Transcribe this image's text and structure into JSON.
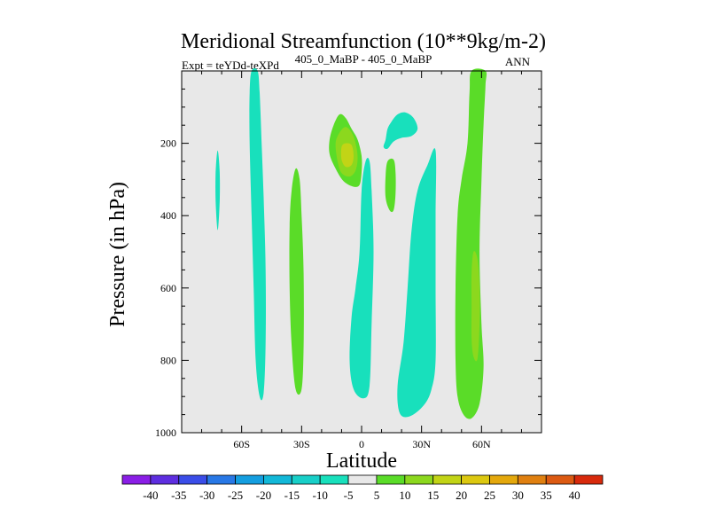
{
  "chart_data": {
    "type": "heatmap",
    "title": "Meridional Streamfunction (10**9kg/m-2)",
    "subtitle_left": "Expt = teYDd-teXPd",
    "subtitle_center": "405_0_MaBP - 405_0_MaBP",
    "subtitle_right": "ANN",
    "xlabel": "Latitude",
    "ylabel": "Pressure (in hPa)",
    "xlim": [
      -90,
      90
    ],
    "ylim": [
      1000,
      0
    ],
    "x_ticks": [
      {
        "value": -60,
        "label": "60S"
      },
      {
        "value": -30,
        "label": "30S"
      },
      {
        "value": 0,
        "label": "0"
      },
      {
        "value": 30,
        "label": "30N"
      },
      {
        "value": 60,
        "label": "60N"
      }
    ],
    "y_ticks": [
      {
        "value": 200,
        "label": "200"
      },
      {
        "value": 400,
        "label": "400"
      },
      {
        "value": 600,
        "label": "600"
      },
      {
        "value": 800,
        "label": "800"
      },
      {
        "value": 1000,
        "label": "1000"
      }
    ],
    "background_color": "#e8e8e8",
    "colorbar": {
      "levels": [
        -40,
        -35,
        -30,
        -25,
        -20,
        -15,
        -10,
        -5,
        5,
        10,
        15,
        20,
        25,
        30,
        35,
        40
      ],
      "labels": [
        "-40",
        "-35",
        "-30",
        "-25",
        "-20",
        "-15",
        "-10",
        "-5",
        "5",
        "10",
        "15",
        "20",
        "25",
        "30",
        "35",
        "40"
      ],
      "colors": [
        "#8a1ee6",
        "#5e2ee0",
        "#3a4de8",
        "#2878e6",
        "#149ee0",
        "#12b8d8",
        "#18cfc8",
        "#18e0bc",
        "#e8e8e8",
        "#5adc28",
        "#8cd81e",
        "#c2d416",
        "#dcc810",
        "#e4a80c",
        "#e08010",
        "#dc5a12",
        "#d82a0c"
      ]
    },
    "regions": [
      {
        "name": "teal-column-60s",
        "color": "#18e0bc",
        "points": [
          [
            -55,
            0
          ],
          [
            -56,
            60
          ],
          [
            -56,
            200
          ],
          [
            -55,
            400
          ],
          [
            -54,
            600
          ],
          [
            -53,
            800
          ],
          [
            -51,
            900
          ],
          [
            -49,
            890
          ],
          [
            -48,
            750
          ],
          [
            -48,
            550
          ],
          [
            -49,
            350
          ],
          [
            -50,
            200
          ],
          [
            -51,
            60
          ],
          [
            -52,
            0
          ]
        ]
      },
      {
        "name": "teal-blob-75s",
        "color": "#18e0bc",
        "points": [
          [
            -72,
            220
          ],
          [
            -73,
            280
          ],
          [
            -73,
            360
          ],
          [
            -72,
            440
          ],
          [
            -71,
            360
          ],
          [
            -71,
            280
          ]
        ]
      },
      {
        "name": "green-column-30s",
        "color": "#5adc28",
        "points": [
          [
            -35,
            330
          ],
          [
            -36,
            430
          ],
          [
            -36,
            600
          ],
          [
            -35,
            760
          ],
          [
            -33,
            880
          ],
          [
            -30,
            880
          ],
          [
            -29,
            760
          ],
          [
            -29,
            560
          ],
          [
            -30,
            400
          ],
          [
            -31,
            300
          ],
          [
            -33,
            270
          ]
        ]
      },
      {
        "name": "green-blob-upper",
        "color": "#5adc28",
        "points": [
          [
            -16,
            190
          ],
          [
            -14,
            150
          ],
          [
            -11,
            120
          ],
          [
            -8,
            130
          ],
          [
            -5,
            160
          ],
          [
            -2,
            190
          ],
          [
            0,
            235
          ],
          [
            0,
            280
          ],
          [
            -1,
            315
          ],
          [
            -4,
            320
          ],
          [
            -9,
            305
          ],
          [
            -13,
            270
          ],
          [
            -16,
            230
          ]
        ]
      },
      {
        "name": "lime-blob-upper",
        "color": "#8cd81e",
        "points": [
          [
            -13,
            200
          ],
          [
            -11,
            170
          ],
          [
            -8,
            155
          ],
          [
            -5,
            170
          ],
          [
            -3,
            200
          ],
          [
            -2,
            240
          ],
          [
            -3,
            275
          ],
          [
            -6,
            292
          ],
          [
            -10,
            282
          ],
          [
            -12,
            250
          ]
        ]
      },
      {
        "name": "yellow-blob-upper",
        "color": "#c2d416",
        "points": [
          [
            -10,
            210
          ],
          [
            -8,
            200
          ],
          [
            -5,
            205
          ],
          [
            -4,
            235
          ],
          [
            -5,
            260
          ],
          [
            -8,
            265
          ],
          [
            -10,
            245
          ]
        ]
      },
      {
        "name": "teal-column-equator",
        "color": "#18e0bc",
        "points": [
          [
            2,
            250
          ],
          [
            0,
            330
          ],
          [
            -1,
            500
          ],
          [
            -3,
            600
          ],
          [
            -5,
            680
          ],
          [
            -6,
            800
          ],
          [
            -4,
            880
          ],
          [
            1,
            905
          ],
          [
            4,
            870
          ],
          [
            5,
            700
          ],
          [
            6,
            500
          ],
          [
            5,
            330
          ],
          [
            4,
            250
          ]
        ]
      },
      {
        "name": "teal-band-upper-right",
        "color": "#18e0bc",
        "points": [
          [
            11,
            210
          ],
          [
            12,
            190
          ],
          [
            13,
            160
          ],
          [
            15,
            140
          ],
          [
            18,
            120
          ],
          [
            22,
            115
          ],
          [
            26,
            130
          ],
          [
            28,
            160
          ],
          [
            25,
            180
          ],
          [
            20,
            185
          ],
          [
            16,
            195
          ],
          [
            13,
            215
          ]
        ]
      },
      {
        "name": "green-blob-15n",
        "color": "#5adc28",
        "points": [
          [
            12,
            290
          ],
          [
            13,
            250
          ],
          [
            16,
            245
          ],
          [
            17,
            280
          ],
          [
            17,
            340
          ],
          [
            16,
            385
          ],
          [
            14,
            385
          ],
          [
            12,
            350
          ]
        ]
      },
      {
        "name": "teal-column-30n",
        "color": "#18e0bc",
        "points": [
          [
            37,
            220
          ],
          [
            33,
            260
          ],
          [
            28,
            330
          ],
          [
            25,
            440
          ],
          [
            23,
            600
          ],
          [
            21,
            750
          ],
          [
            18,
            870
          ],
          [
            19,
            945
          ],
          [
            24,
            955
          ],
          [
            31,
            925
          ],
          [
            35,
            880
          ],
          [
            37,
            800
          ],
          [
            37,
            600
          ],
          [
            37,
            400
          ]
        ]
      },
      {
        "name": "green-column-60n",
        "color": "#5adc28",
        "points": [
          [
            55,
            0
          ],
          [
            54,
            60
          ],
          [
            53,
            200
          ],
          [
            50,
            300
          ],
          [
            48,
            400
          ],
          [
            47,
            600
          ],
          [
            47,
            800
          ],
          [
            48,
            900
          ],
          [
            51,
            950
          ],
          [
            55,
            960
          ],
          [
            59,
            920
          ],
          [
            61,
            820
          ],
          [
            60,
            700
          ],
          [
            59,
            500
          ],
          [
            60,
            300
          ],
          [
            61,
            150
          ],
          [
            62,
            40
          ],
          [
            62,
            0
          ]
        ]
      },
      {
        "name": "lime-core-60n",
        "color": "#8cd81e",
        "points": [
          [
            56,
            500
          ],
          [
            55,
            560
          ],
          [
            55,
            650
          ],
          [
            55,
            740
          ],
          [
            56,
            790
          ],
          [
            58,
            795
          ],
          [
            59,
            700
          ],
          [
            59,
            600
          ],
          [
            58,
            520
          ]
        ]
      }
    ]
  }
}
